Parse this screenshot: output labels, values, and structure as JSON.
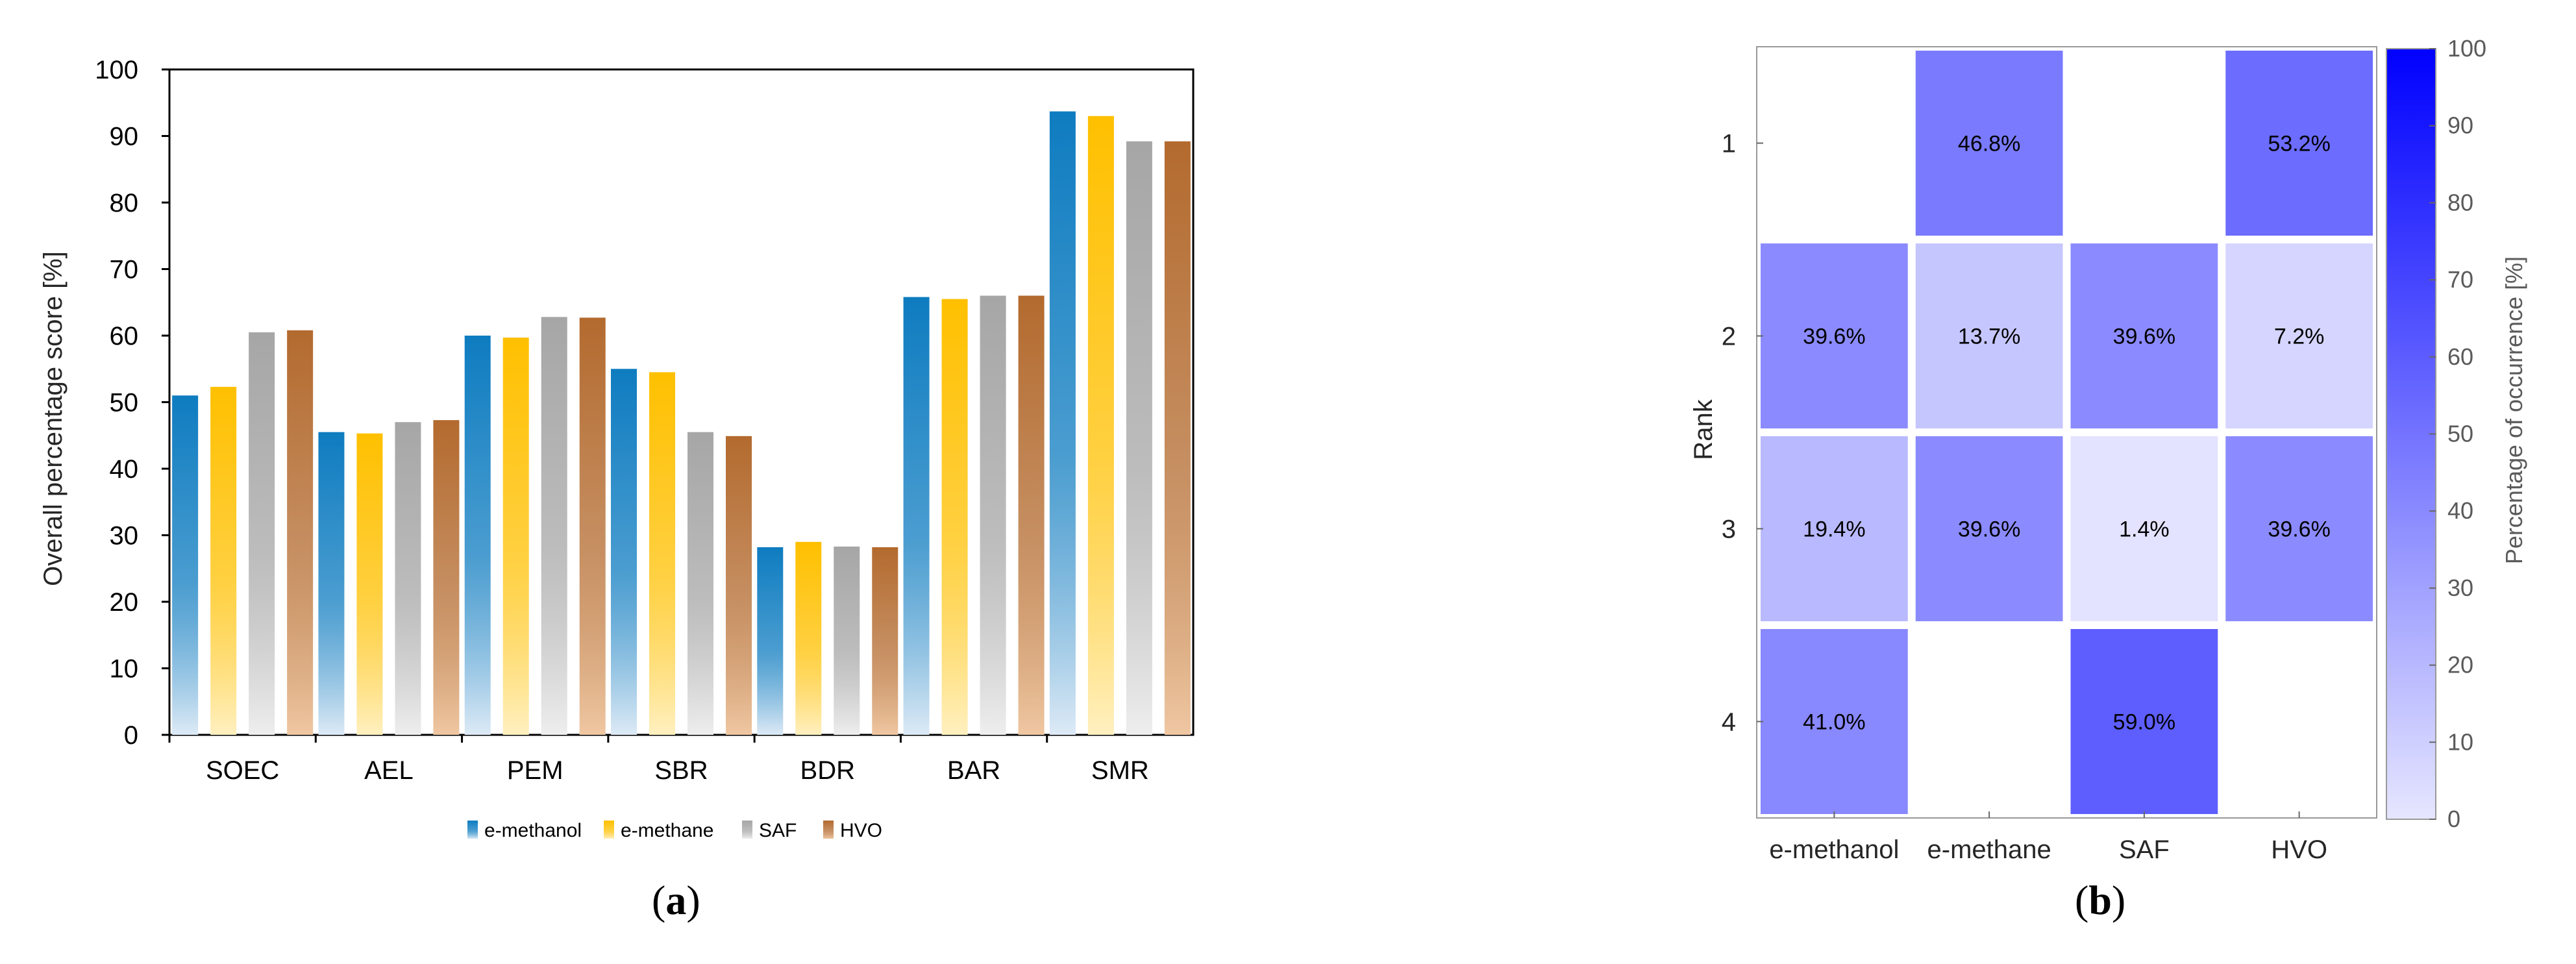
{
  "chart_data": [
    {
      "type": "bar",
      "panel_label": "a",
      "title": "",
      "xlabel": "",
      "ylabel": "Overall percentage score  [%]",
      "ylim": [
        0,
        100
      ],
      "yticks": [
        0,
        10,
        20,
        30,
        40,
        50,
        60,
        70,
        80,
        90,
        100
      ],
      "categories": [
        "SOEC",
        "AEL",
        "PEM",
        "SBR",
        "BDR",
        "BAR",
        "SMR"
      ],
      "series": [
        {
          "name": "e-methanol",
          "color": "#0E7CC0",
          "fade": "#DDEAF6",
          "values": [
            51.0,
            45.5,
            60.0,
            55.0,
            28.2,
            65.8,
            93.7
          ]
        },
        {
          "name": "e-methane",
          "color": "#FFC000",
          "fade": "#FFF0C0",
          "values": [
            52.3,
            45.3,
            59.7,
            54.5,
            29.0,
            65.5,
            93.0
          ]
        },
        {
          "name": "SAF",
          "color": "#A6A6A6",
          "fade": "#EEEEEE",
          "values": [
            60.5,
            47.0,
            62.8,
            45.5,
            28.3,
            66.0,
            89.2
          ]
        },
        {
          "name": "HVO",
          "color": "#B36A2E",
          "fade": "#EFC7A2",
          "values": [
            60.8,
            47.3,
            62.7,
            44.9,
            28.2,
            66.0,
            89.2
          ]
        }
      ],
      "legend_position": "bottom-center",
      "grid": false
    },
    {
      "type": "heatmap",
      "panel_label": "b",
      "xlabel": "",
      "ylabel": "Rank",
      "x_categories": [
        "e-methanol",
        "e-methane",
        "SAF",
        "HVO"
      ],
      "y_categories": [
        "1",
        "2",
        "3",
        "4"
      ],
      "cells": [
        {
          "rank": "1",
          "fuel": "e-methane",
          "value": 46.8,
          "label": "46.8%"
        },
        {
          "rank": "1",
          "fuel": "HVO",
          "value": 53.2,
          "label": "53.2%"
        },
        {
          "rank": "2",
          "fuel": "e-methanol",
          "value": 39.6,
          "label": "39.6%"
        },
        {
          "rank": "2",
          "fuel": "e-methane",
          "value": 13.7,
          "label": "13.7%"
        },
        {
          "rank": "2",
          "fuel": "SAF",
          "value": 39.6,
          "label": "39.6%"
        },
        {
          "rank": "2",
          "fuel": "HVO",
          "value": 7.2,
          "label": "7.2%"
        },
        {
          "rank": "3",
          "fuel": "e-methanol",
          "value": 19.4,
          "label": "19.4%"
        },
        {
          "rank": "3",
          "fuel": "e-methane",
          "value": 39.6,
          "label": "39.6%"
        },
        {
          "rank": "3",
          "fuel": "SAF",
          "value": 1.4,
          "label": "1.4%"
        },
        {
          "rank": "3",
          "fuel": "HVO",
          "value": 39.6,
          "label": "39.6%"
        },
        {
          "rank": "4",
          "fuel": "e-methanol",
          "value": 41.0,
          "label": "41.0%"
        },
        {
          "rank": "4",
          "fuel": "SAF",
          "value": 59.0,
          "label": "59.0%"
        }
      ],
      "colorbar": {
        "label": "Percentage of occurrence [%]",
        "range": [
          0,
          100
        ],
        "ticks": [
          0,
          10,
          20,
          30,
          40,
          50,
          60,
          70,
          80,
          90,
          100
        ],
        "color_low": "#E6E6FF",
        "color_high": "#0000FF"
      }
    }
  ],
  "captions": {
    "a": "a",
    "b": "b"
  }
}
